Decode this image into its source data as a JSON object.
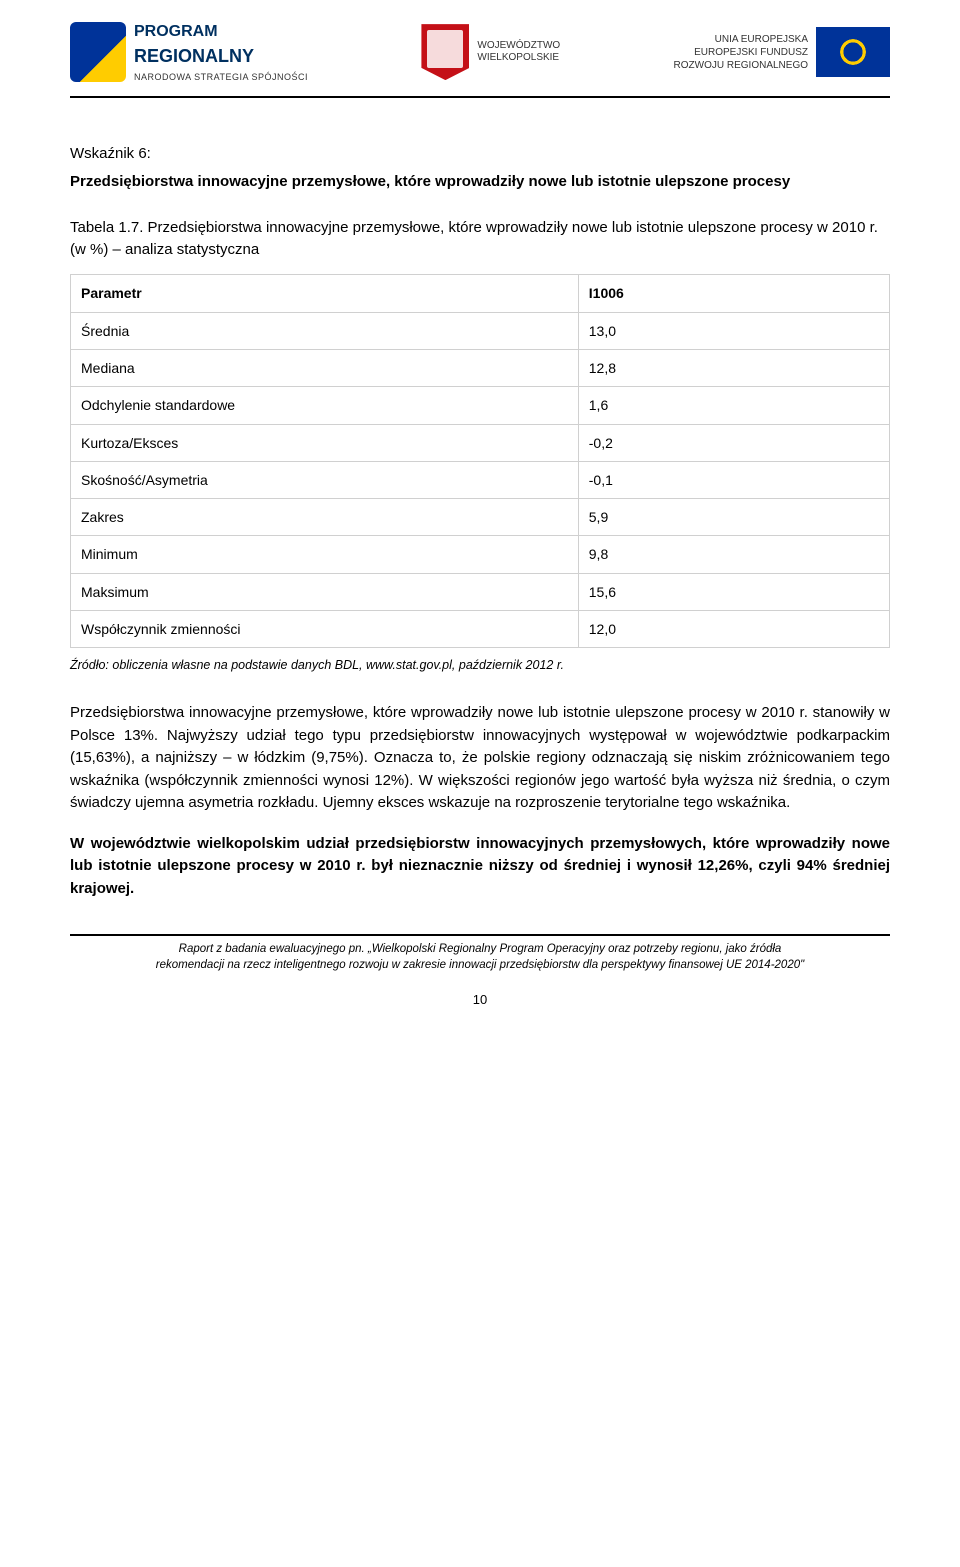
{
  "header": {
    "left": {
      "line1": "PROGRAM",
      "line2": "REGIONALNY",
      "line3": "NARODOWA STRATEGIA SPÓJNOŚCI"
    },
    "middle": {
      "line1": "WOJEWÓDZTWO",
      "line2": "WIELKOPOLSKIE"
    },
    "right": {
      "line1": "UNIA EUROPEJSKA",
      "line2": "EUROPEJSKI FUNDUSZ",
      "line3": "ROZWOJU REGIONALNEGO"
    }
  },
  "section": {
    "label": "Wskaźnik 6:",
    "title": "Przedsiębiorstwa innowacyjne przemysłowe, które wprowadziły nowe lub istotnie ulepszone procesy"
  },
  "table": {
    "caption": "Tabela 1.7. Przedsiębiorstwa innowacyjne przemysłowe, które wprowadziły nowe lub istotnie ulepszone procesy w 2010 r. (w %) – analiza statystyczna",
    "colors": {
      "border": "#d0d0d0",
      "background": "#ffffff",
      "text": "#000000"
    },
    "header": [
      "Parametr",
      "I1006"
    ],
    "rows": [
      [
        "Średnia",
        "13,0"
      ],
      [
        "Mediana",
        "12,8"
      ],
      [
        "Odchylenie standardowe",
        "1,6"
      ],
      [
        "Kurtoza/Eksces",
        "-0,2"
      ],
      [
        "Skośność/Asymetria",
        "-0,1"
      ],
      [
        "Zakres",
        "5,9"
      ],
      [
        "Minimum",
        "9,8"
      ],
      [
        "Maksimum",
        "15,6"
      ],
      [
        "Współczynnik zmienności",
        "12,0"
      ]
    ],
    "source": "Źródło: obliczenia własne na podstawie danych BDL, www.stat.gov.pl, październik 2012 r."
  },
  "paragraphs": {
    "p1": "Przedsiębiorstwa innowacyjne przemysłowe, które wprowadziły nowe lub istotnie ulepszone procesy w 2010 r. stanowiły w Polsce 13%. Najwyższy udział tego typu przedsiębiorstw innowacyjnych występował w województwie podkarpackim (15,63%), a najniższy – w łódzkim (9,75%). Oznacza to, że polskie regiony odznaczają się niskim zróżnicowaniem tego wskaźnika (współczynnik zmienności wynosi 12%). W większości regionów jego wartość była wyższa niż średnia, o czym świadczy ujemna asymetria rozkładu. Ujemny eksces wskazuje na rozproszenie terytorialne tego wskaźnika.",
    "p2": "W województwie wielkopolskim udział przedsiębiorstw innowacyjnych przemysłowych, które wprowadziły nowe lub istotnie ulepszone procesy w 2010 r. był nieznacznie niższy od średniej i wynosił 12,26%, czyli 94% średniej krajowej."
  },
  "footer": {
    "line1": "Raport z badania ewaluacyjnego pn. „Wielkopolski Regionalny Program Operacyjny oraz potrzeby regionu, jako źródła",
    "line2": "rekomendacji na rzecz inteligentnego rozwoju w zakresie innowacji przedsiębiorstw dla perspektywy finansowej UE 2014-2020\"",
    "pagenum": "10"
  }
}
